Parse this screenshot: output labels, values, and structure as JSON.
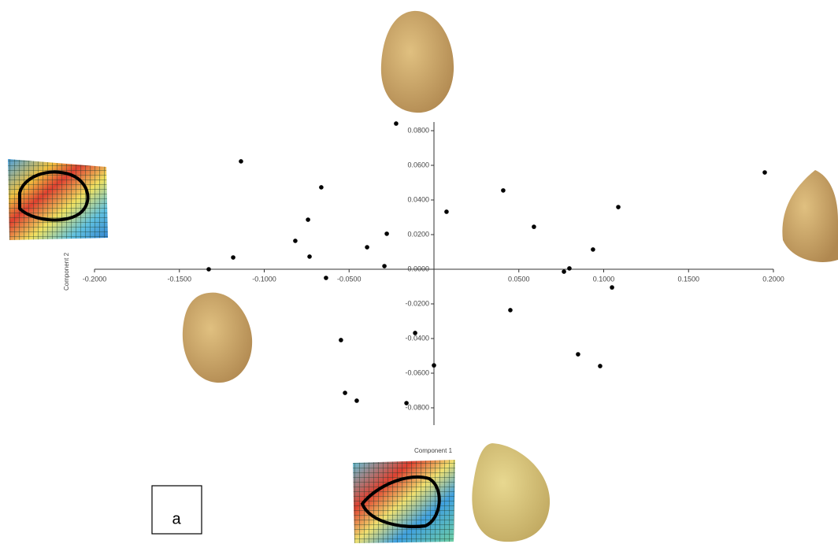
{
  "chart_data": {
    "type": "scatter",
    "xlabel": "Component 1",
    "ylabel": "Component 2",
    "annotation": "a",
    "color": "#000000",
    "x": [
      -0.0223,
      -0.1137,
      -0.0664,
      -0.0742,
      -0.0817,
      -0.0733,
      -0.1183,
      -0.1327,
      -0.0636,
      -0.0394,
      -0.0278,
      -0.0292,
      0.0074,
      0.0408,
      0.0589,
      0.0937,
      0.1086,
      0.1949,
      0.0766,
      0.0798,
      0.1049,
      0.045,
      0.0849,
      0.0979,
      -0.0111,
      0.0,
      -0.0548,
      -0.0524,
      -0.0455,
      -0.0162
    ],
    "values": [
      0.0841,
      0.0623,
      0.0473,
      0.0286,
      0.0164,
      0.0073,
      0.0068,
      0.0,
      -0.005,
      0.0127,
      0.0205,
      0.0018,
      0.0332,
      0.0455,
      0.0245,
      0.0114,
      0.0359,
      0.0559,
      -0.0014,
      0.0005,
      -0.0105,
      -0.0236,
      -0.0491,
      -0.0559,
      -0.0368,
      -0.0555,
      -0.0409,
      -0.0714,
      -0.0759,
      -0.0773
    ],
    "xlim": [
      -0.2,
      0.2
    ],
    "ylim": [
      -0.09,
      0.085
    ],
    "xticks": [
      {
        "value": -0.2,
        "label": "-0.2000"
      },
      {
        "value": -0.15,
        "label": "-0.1500"
      },
      {
        "value": -0.1,
        "label": "-0.1000"
      },
      {
        "value": -0.05,
        "label": "-0.0500"
      },
      {
        "value": 0.05,
        "label": "0.0500"
      },
      {
        "value": 0.1,
        "label": "0.1000"
      },
      {
        "value": 0.15,
        "label": "0.1500"
      },
      {
        "value": 0.2,
        "label": "0.2000"
      }
    ],
    "yticks": [
      {
        "value": 0.08,
        "label": "0.0800"
      },
      {
        "value": 0.06,
        "label": "0.0600"
      },
      {
        "value": 0.04,
        "label": "0.0400"
      },
      {
        "value": 0.02,
        "label": "0.0200"
      },
      {
        "value": 0,
        "label": "0.0000"
      },
      {
        "value": -0.02,
        "label": "-0.0200"
      },
      {
        "value": -0.04,
        "label": "-0.0400"
      },
      {
        "value": -0.06,
        "label": "-0.0600"
      },
      {
        "value": -0.08,
        "label": "-0.0800"
      }
    ]
  }
}
